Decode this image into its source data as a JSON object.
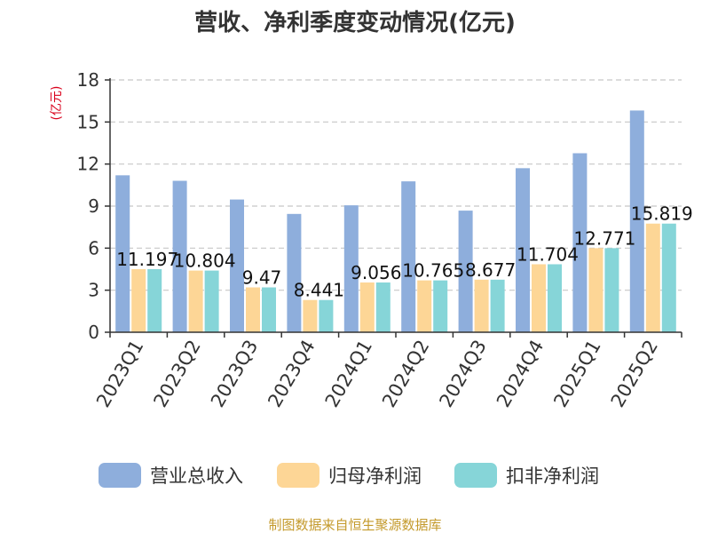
{
  "chart_data": {
    "type": "bar",
    "title": "营收、净利季度变动情况(亿元)",
    "ylabel": "(亿元)",
    "xlabel": "",
    "ylim": [
      0,
      18
    ],
    "yticks": [
      0,
      3,
      6,
      9,
      12,
      15,
      18
    ],
    "grid": true,
    "legend_position": "bottom",
    "categories": [
      "2023Q1",
      "2023Q2",
      "2023Q3",
      "2023Q4",
      "2024Q1",
      "2024Q2",
      "2024Q3",
      "2024Q4",
      "2025Q1",
      "2025Q2"
    ],
    "series": [
      {
        "name": "营业总收入",
        "color": "#8eaedc",
        "values": [
          11.197,
          10.804,
          9.47,
          8.441,
          9.056,
          10.765,
          8.677,
          11.704,
          12.771,
          15.819
        ],
        "labels": [
          "11.197",
          "10.804",
          "9.47",
          "8.441",
          "9.056",
          "10.765",
          "8.677",
          "11.704",
          "12.771",
          "15.819"
        ]
      },
      {
        "name": "归母净利润",
        "color": "#fdd696",
        "values": [
          4.5,
          4.4,
          3.2,
          2.3,
          3.55,
          3.7,
          3.75,
          4.85,
          6.0,
          7.75
        ]
      },
      {
        "name": "扣非净利润",
        "color": "#86d5d8",
        "values": [
          4.5,
          4.4,
          3.2,
          2.3,
          3.55,
          3.7,
          3.75,
          4.85,
          6.0,
          7.75
        ]
      }
    ],
    "source": "制图数据来自恒生聚源数据库"
  }
}
